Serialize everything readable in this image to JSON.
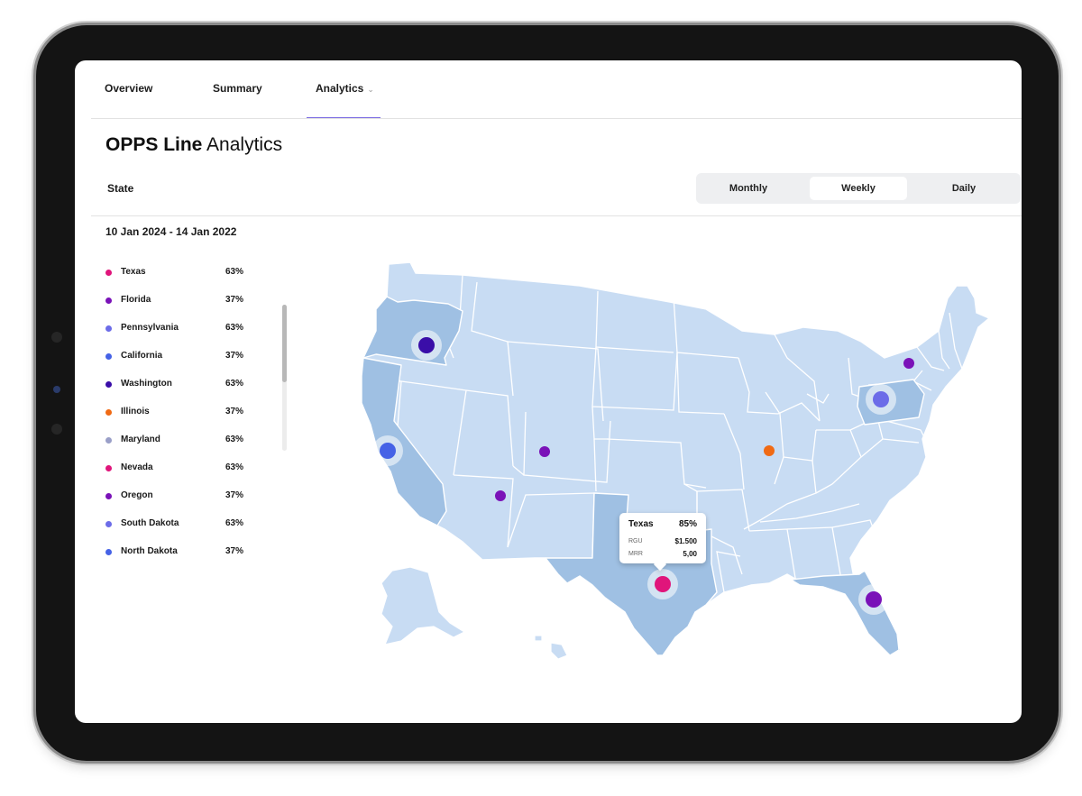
{
  "tabs": [
    {
      "label": "Overview"
    },
    {
      "label": "Summary"
    },
    {
      "label": "Analytics",
      "dropdown_icon": "chevron-down-icon"
    }
  ],
  "page": {
    "title_bold": "OPPS Line",
    "title_rest": " Analytics"
  },
  "filter": {
    "label": "State",
    "periods": [
      "Monthly",
      "Weekly",
      "Daily"
    ],
    "active_period": "Weekly"
  },
  "date_range": "10 Jan 2024 - 14 Jan 2022",
  "legend": [
    {
      "name": "Texas",
      "pct": "63%",
      "color": "#e0157b"
    },
    {
      "name": "Florida",
      "pct": "37%",
      "color": "#7a12b8"
    },
    {
      "name": "Pennsylvania",
      "pct": "63%",
      "color": "#6c6ce8"
    },
    {
      "name": "California",
      "pct": "37%",
      "color": "#4562e6"
    },
    {
      "name": "Washington",
      "pct": "63%",
      "color": "#3a0ea8"
    },
    {
      "name": "Illinois",
      "pct": "37%",
      "color": "#f06a14"
    },
    {
      "name": "Maryland",
      "pct": "63%",
      "color": "#9a9fc8"
    },
    {
      "name": "Nevada",
      "pct": "63%",
      "color": "#e0157b"
    },
    {
      "name": "Oregon",
      "pct": "37%",
      "color": "#7a12b8"
    },
    {
      "name": "South Dakota",
      "pct": "63%",
      "color": "#6c6ce8"
    },
    {
      "name": "North Dakota",
      "pct": "37%",
      "color": "#4562e6"
    }
  ],
  "map": {
    "base_color": "#c8dcf3",
    "highlight_color": "#9fc0e3",
    "highlighted_states": [
      "Oregon",
      "California",
      "Texas",
      "Florida",
      "Pennsylvania"
    ]
  },
  "tooltip": {
    "state": "Texas",
    "value": "85%",
    "rows": [
      {
        "key": "RGU",
        "value": "$1.500"
      },
      {
        "key": "MRR",
        "value": "5,00"
      }
    ]
  }
}
